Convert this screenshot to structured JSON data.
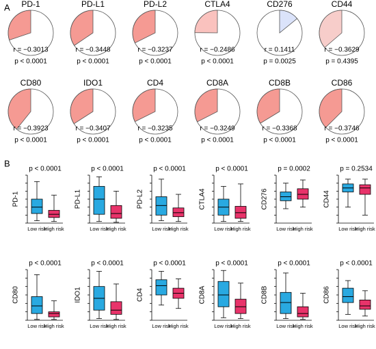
{
  "panel_labels": [
    "A",
    "B"
  ],
  "chart_data": [
    {
      "type": "pie",
      "title": "PD-1",
      "values": [
        -0.3013
      ],
      "value_labels": [
        "r = −0.3013"
      ],
      "annotation": "p < 0.0001",
      "color": "#f59a93"
    },
    {
      "type": "pie",
      "title": "PD-L1",
      "values": [
        -0.3448
      ],
      "value_labels": [
        "r = −0.3448"
      ],
      "annotation": "p < 0.0001",
      "color": "#f59a93"
    },
    {
      "type": "pie",
      "title": "PD-L2",
      "values": [
        -0.3237
      ],
      "value_labels": [
        "r = −0.3237"
      ],
      "annotation": "p < 0.0001",
      "color": "#f59a93"
    },
    {
      "type": "pie",
      "title": "CTLA4",
      "values": [
        -0.2486
      ],
      "value_labels": [
        "r = −0.2486"
      ],
      "annotation": "p < 0.0001",
      "color": "#fac2be"
    },
    {
      "type": "pie",
      "title": "CD276",
      "values": [
        0.1411
      ],
      "value_labels": [
        "r = 0.1411"
      ],
      "annotation": "p = 0.0025",
      "color": "#dbe3fa"
    },
    {
      "type": "pie",
      "title": "CD44",
      "values": [
        -0.3629
      ],
      "value_labels": [
        "r = −0.3629"
      ],
      "annotation": "p = 0.4395",
      "color": "#f7cdca"
    },
    {
      "type": "pie",
      "title": "CD80",
      "values": [
        -0.3923
      ],
      "value_labels": [
        "r = −0.3923"
      ],
      "annotation": "p < 0.0001",
      "color": "#f59a93"
    },
    {
      "type": "pie",
      "title": "IDO1",
      "values": [
        -0.3407
      ],
      "value_labels": [
        "r = −0.3407"
      ],
      "annotation": "p < 0.0001",
      "color": "#f59a93"
    },
    {
      "type": "pie",
      "title": "CD4",
      "values": [
        -0.3235
      ],
      "value_labels": [
        "r = −0.3235"
      ],
      "annotation": "p < 0.0001",
      "color": "#f59a93"
    },
    {
      "type": "pie",
      "title": "CD8A",
      "values": [
        -0.3249
      ],
      "value_labels": [
        "r = −0.3249"
      ],
      "annotation": "p < 0.0001",
      "color": "#f59a93"
    },
    {
      "type": "pie",
      "title": "CD8B",
      "values": [
        -0.3368
      ],
      "value_labels": [
        "r = −0.3368"
      ],
      "annotation": "p < 0.0001",
      "color": "#f59a93"
    },
    {
      "type": "pie",
      "title": "CD86",
      "values": [
        -0.3746
      ],
      "value_labels": [
        "r = −0.3746"
      ],
      "annotation": "p < 0.0001",
      "color": "#f59a93"
    },
    {
      "type": "box",
      "title": "p < 0.0001",
      "ylabel": "PD-1",
      "categories": [
        "Low risk",
        "High risk"
      ],
      "ylim": [
        0,
        6
      ],
      "yticks": [
        0,
        1,
        2,
        3,
        4,
        5,
        6
      ],
      "boxes": [
        {
          "min": 0.3,
          "q1": 1.2,
          "median": 2.0,
          "q3": 3.0,
          "max": 5.2,
          "color": "#29a9e1"
        },
        {
          "min": 0.2,
          "q1": 0.7,
          "median": 1.1,
          "q3": 1.6,
          "max": 3.5,
          "color": "#e8336a"
        }
      ]
    },
    {
      "type": "box",
      "title": "p < 0.0001",
      "ylabel": "PD-L1",
      "categories": [
        "Low risk",
        "High risk"
      ],
      "ylim": [
        0,
        6
      ],
      "yticks": [
        0,
        1,
        2,
        3,
        4,
        5,
        6
      ],
      "boxes": [
        {
          "min": 0.2,
          "q1": 1.1,
          "median": 3.0,
          "q3": 4.6,
          "max": 5.8,
          "color": "#29a9e1"
        },
        {
          "min": 0.1,
          "q1": 0.6,
          "median": 1.2,
          "q3": 2.2,
          "max": 4.0,
          "color": "#e8336a"
        }
      ]
    },
    {
      "type": "box",
      "title": "p < 0.0001",
      "ylabel": "PD-L2",
      "categories": [
        "Low risk",
        "High risk"
      ],
      "ylim": [
        0,
        6
      ],
      "yticks": [
        0,
        1,
        2,
        3,
        4,
        5,
        6
      ],
      "boxes": [
        {
          "min": 0.3,
          "q1": 1.0,
          "median": 2.2,
          "q3": 3.3,
          "max": 5.5,
          "color": "#29a9e1"
        },
        {
          "min": 0.2,
          "q1": 0.8,
          "median": 1.3,
          "q3": 1.9,
          "max": 3.6,
          "color": "#e8336a"
        }
      ]
    },
    {
      "type": "box",
      "title": "p < 0.0001",
      "ylabel": "CTLA4",
      "categories": [
        "Low risk",
        "High risk"
      ],
      "ylim": [
        0,
        6
      ],
      "yticks": [
        0,
        1,
        2,
        3,
        4,
        5,
        6
      ],
      "boxes": [
        {
          "min": 0.2,
          "q1": 1.0,
          "median": 2.0,
          "q3": 3.0,
          "max": 4.6,
          "color": "#29a9e1"
        },
        {
          "min": 0.2,
          "q1": 0.6,
          "median": 1.3,
          "q3": 2.1,
          "max": 4.9,
          "color": "#e8336a"
        }
      ]
    },
    {
      "type": "box",
      "title": "p = 0.0002",
      "ylabel": "CD276",
      "categories": [
        "Low risk",
        "High risk"
      ],
      "ylim": [
        0,
        6
      ],
      "yticks": [
        0,
        1,
        2,
        3,
        4,
        5,
        6
      ],
      "boxes": [
        {
          "min": 1.8,
          "q1": 2.8,
          "median": 3.3,
          "q3": 3.9,
          "max": 5.0,
          "color": "#29a9e1"
        },
        {
          "min": 2.0,
          "q1": 3.0,
          "median": 3.6,
          "q3": 4.3,
          "max": 5.4,
          "color": "#e8336a"
        }
      ]
    },
    {
      "type": "box",
      "title": "p = 0.2534",
      "ylabel": "CD44",
      "categories": [
        "Low risk",
        "High risk"
      ],
      "ylim": [
        0,
        6
      ],
      "yticks": [
        0,
        1,
        2,
        3,
        4,
        5,
        6
      ],
      "boxes": [
        {
          "min": 2.0,
          "q1": 3.9,
          "median": 4.4,
          "q3": 4.9,
          "max": 5.5,
          "color": "#29a9e1"
        },
        {
          "min": 1.0,
          "q1": 3.6,
          "median": 4.4,
          "q3": 4.8,
          "max": 5.5,
          "color": "#e8336a"
        }
      ]
    },
    {
      "type": "box",
      "title": "p < 0.0001",
      "ylabel": "CD80",
      "categories": [
        "Low risk",
        "High risk"
      ],
      "ylim": [
        0,
        6
      ],
      "yticks": [
        0,
        1,
        2,
        3,
        4,
        5,
        6
      ],
      "boxes": [
        {
          "min": 0.1,
          "q1": 0.8,
          "median": 1.7,
          "q3": 2.8,
          "max": 5.4,
          "color": "#29a9e1"
        },
        {
          "min": 0.1,
          "q1": 0.4,
          "median": 0.8,
          "q3": 1.0,
          "max": 2.3,
          "color": "#e8336a"
        }
      ]
    },
    {
      "type": "box",
      "title": "p < 0.0001",
      "ylabel": "IDO1",
      "categories": [
        "Low risk",
        "High risk"
      ],
      "ylim": [
        0,
        6
      ],
      "yticks": [
        0,
        1,
        2,
        3,
        4,
        5,
        6
      ],
      "boxes": [
        {
          "min": 0.2,
          "q1": 1.2,
          "median": 2.6,
          "q3": 4.0,
          "max": 5.8,
          "color": "#29a9e1"
        },
        {
          "min": 0.1,
          "q1": 0.7,
          "median": 1.2,
          "q3": 2.2,
          "max": 4.3,
          "color": "#e8336a"
        }
      ]
    },
    {
      "type": "box",
      "title": "p < 0.0001",
      "ylabel": "CD4",
      "categories": [
        "Low risk",
        "High risk"
      ],
      "ylim": [
        0,
        6
      ],
      "yticks": [
        0,
        1,
        2,
        3,
        4,
        5,
        6
      ],
      "boxes": [
        {
          "min": 1.8,
          "q1": 3.0,
          "median": 4.1,
          "q3": 4.8,
          "max": 5.8,
          "color": "#29a9e1"
        },
        {
          "min": 1.4,
          "q1": 2.6,
          "median": 3.2,
          "q3": 3.8,
          "max": 4.9,
          "color": "#e8336a"
        }
      ]
    },
    {
      "type": "box",
      "title": "p < 0.0001",
      "ylabel": "CD8A",
      "categories": [
        "Low risk",
        "High risk"
      ],
      "ylim": [
        0,
        6
      ],
      "yticks": [
        0,
        1,
        2,
        3,
        4,
        5,
        6
      ],
      "boxes": [
        {
          "min": 0.3,
          "q1": 1.6,
          "median": 3.0,
          "q3": 4.6,
          "max": 5.9,
          "color": "#29a9e1"
        },
        {
          "min": 0.2,
          "q1": 0.8,
          "median": 1.6,
          "q3": 2.5,
          "max": 4.4,
          "color": "#e8336a"
        }
      ]
    },
    {
      "type": "box",
      "title": "p < 0.0001",
      "ylabel": "CD8B",
      "categories": [
        "Low risk",
        "High risk"
      ],
      "ylim": [
        0,
        6
      ],
      "yticks": [
        0,
        1,
        2,
        3,
        4,
        5,
        6
      ],
      "boxes": [
        {
          "min": 0.2,
          "q1": 0.8,
          "median": 2.1,
          "q3": 3.3,
          "max": 5.6,
          "color": "#29a9e1"
        },
        {
          "min": 0.1,
          "q1": 0.4,
          "median": 0.8,
          "q3": 1.6,
          "max": 3.2,
          "color": "#e8336a"
        }
      ]
    },
    {
      "type": "box",
      "title": "p < 0.0001",
      "ylabel": "CD86",
      "categories": [
        "Low risk",
        "High risk"
      ],
      "ylim": [
        0,
        6
      ],
      "yticks": [
        0,
        1,
        2,
        3,
        4,
        5,
        6
      ],
      "boxes": [
        {
          "min": 0.7,
          "q1": 2.1,
          "median": 2.8,
          "q3": 3.8,
          "max": 4.7,
          "color": "#29a9e1"
        },
        {
          "min": 0.5,
          "q1": 1.3,
          "median": 1.7,
          "q3": 2.4,
          "max": 3.5,
          "color": "#e8336a"
        }
      ]
    }
  ]
}
